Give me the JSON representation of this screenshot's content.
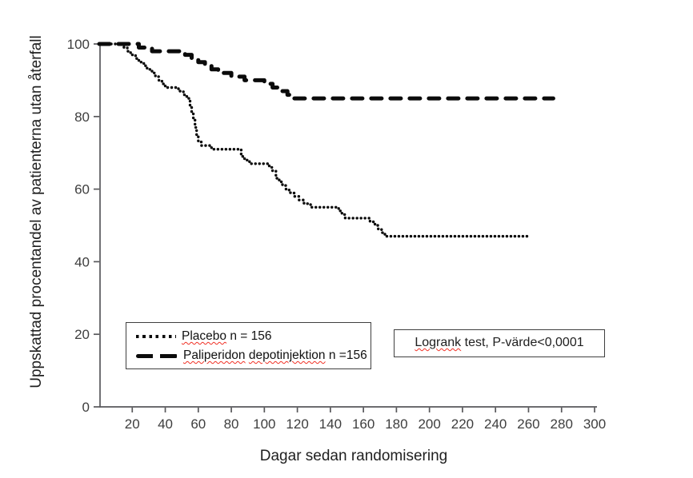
{
  "chart_data": {
    "type": "line",
    "variant": "kaplan_meier_step",
    "title": "",
    "xlabel": "Dagar sedan randomisering",
    "ylabel": "Uppskattad procentandel av patienterna utan återfall",
    "xlim": [
      0,
      300
    ],
    "ylim": [
      0,
      100
    ],
    "x_ticks": [
      20,
      40,
      60,
      80,
      100,
      120,
      140,
      160,
      180,
      200,
      220,
      240,
      260,
      280,
      300
    ],
    "y_ticks": [
      0,
      20,
      40,
      60,
      80,
      100
    ],
    "grid": false,
    "legend_position": "inside-bottom-left",
    "annotation": "Logrank test, P-värde<0,0001",
    "series": [
      {
        "name": "Placebo n = 156",
        "line_style": "dotted",
        "color": "#0b0b0b",
        "points": [
          [
            0,
            100
          ],
          [
            13,
            100
          ],
          [
            15,
            99
          ],
          [
            17,
            98
          ],
          [
            19,
            97
          ],
          [
            22,
            96
          ],
          [
            24,
            95
          ],
          [
            27,
            94
          ],
          [
            29,
            93
          ],
          [
            32,
            92
          ],
          [
            34,
            91
          ],
          [
            36,
            90
          ],
          [
            38,
            89
          ],
          [
            40,
            88
          ],
          [
            46,
            88
          ],
          [
            48,
            87
          ],
          [
            51,
            86
          ],
          [
            53,
            85
          ],
          [
            55,
            83
          ],
          [
            56,
            81
          ],
          [
            57,
            79
          ],
          [
            58,
            77
          ],
          [
            59,
            75
          ],
          [
            60,
            73
          ],
          [
            62,
            72
          ],
          [
            68,
            71
          ],
          [
            84,
            71
          ],
          [
            86,
            69
          ],
          [
            88,
            68
          ],
          [
            91,
            67
          ],
          [
            101,
            67
          ],
          [
            103,
            66
          ],
          [
            105,
            65
          ],
          [
            107,
            63
          ],
          [
            109,
            62
          ],
          [
            111,
            61
          ],
          [
            113,
            60
          ],
          [
            115,
            59
          ],
          [
            118,
            58
          ],
          [
            121,
            57
          ],
          [
            124,
            56
          ],
          [
            128,
            55
          ],
          [
            143,
            55
          ],
          [
            145,
            54
          ],
          [
            147,
            53
          ],
          [
            149,
            52
          ],
          [
            161,
            52
          ],
          [
            164,
            51
          ],
          [
            167,
            50
          ],
          [
            169,
            49
          ],
          [
            171,
            48
          ],
          [
            173,
            47
          ],
          [
            261,
            47
          ]
        ]
      },
      {
        "name": "Paliperidon depotinjektion n =156",
        "line_style": "dashed",
        "color": "#0b0b0b",
        "points": [
          [
            0,
            100
          ],
          [
            22,
            100
          ],
          [
            24,
            99
          ],
          [
            32,
            98
          ],
          [
            52,
            97
          ],
          [
            56,
            96
          ],
          [
            60,
            95
          ],
          [
            64,
            94
          ],
          [
            68,
            93
          ],
          [
            72,
            92
          ],
          [
            80,
            91
          ],
          [
            88,
            90
          ],
          [
            100,
            89
          ],
          [
            105,
            88
          ],
          [
            110,
            87
          ],
          [
            114,
            86
          ],
          [
            118,
            85
          ],
          [
            275,
            85
          ]
        ]
      }
    ]
  },
  "legend": {
    "items": [
      {
        "marker_style": "dotted-line-marker",
        "word": "Placebo",
        "rest": "n = 156"
      },
      {
        "marker_style": "dashed-line-marker",
        "word1": "Paliperidon",
        "word2": "depotinjektion",
        "rest": "n =156"
      }
    ]
  },
  "annotation_box": {
    "word": "Logrank",
    "rest": "test, P-värde<0,0001"
  },
  "colors": {
    "curve": "#0b0b0b",
    "axis": "#58585b",
    "tick_label": "#3e3e3e",
    "box_border": "#3f3f3f",
    "spellcheck_underline": "#f03024",
    "background": "#ffffff"
  }
}
